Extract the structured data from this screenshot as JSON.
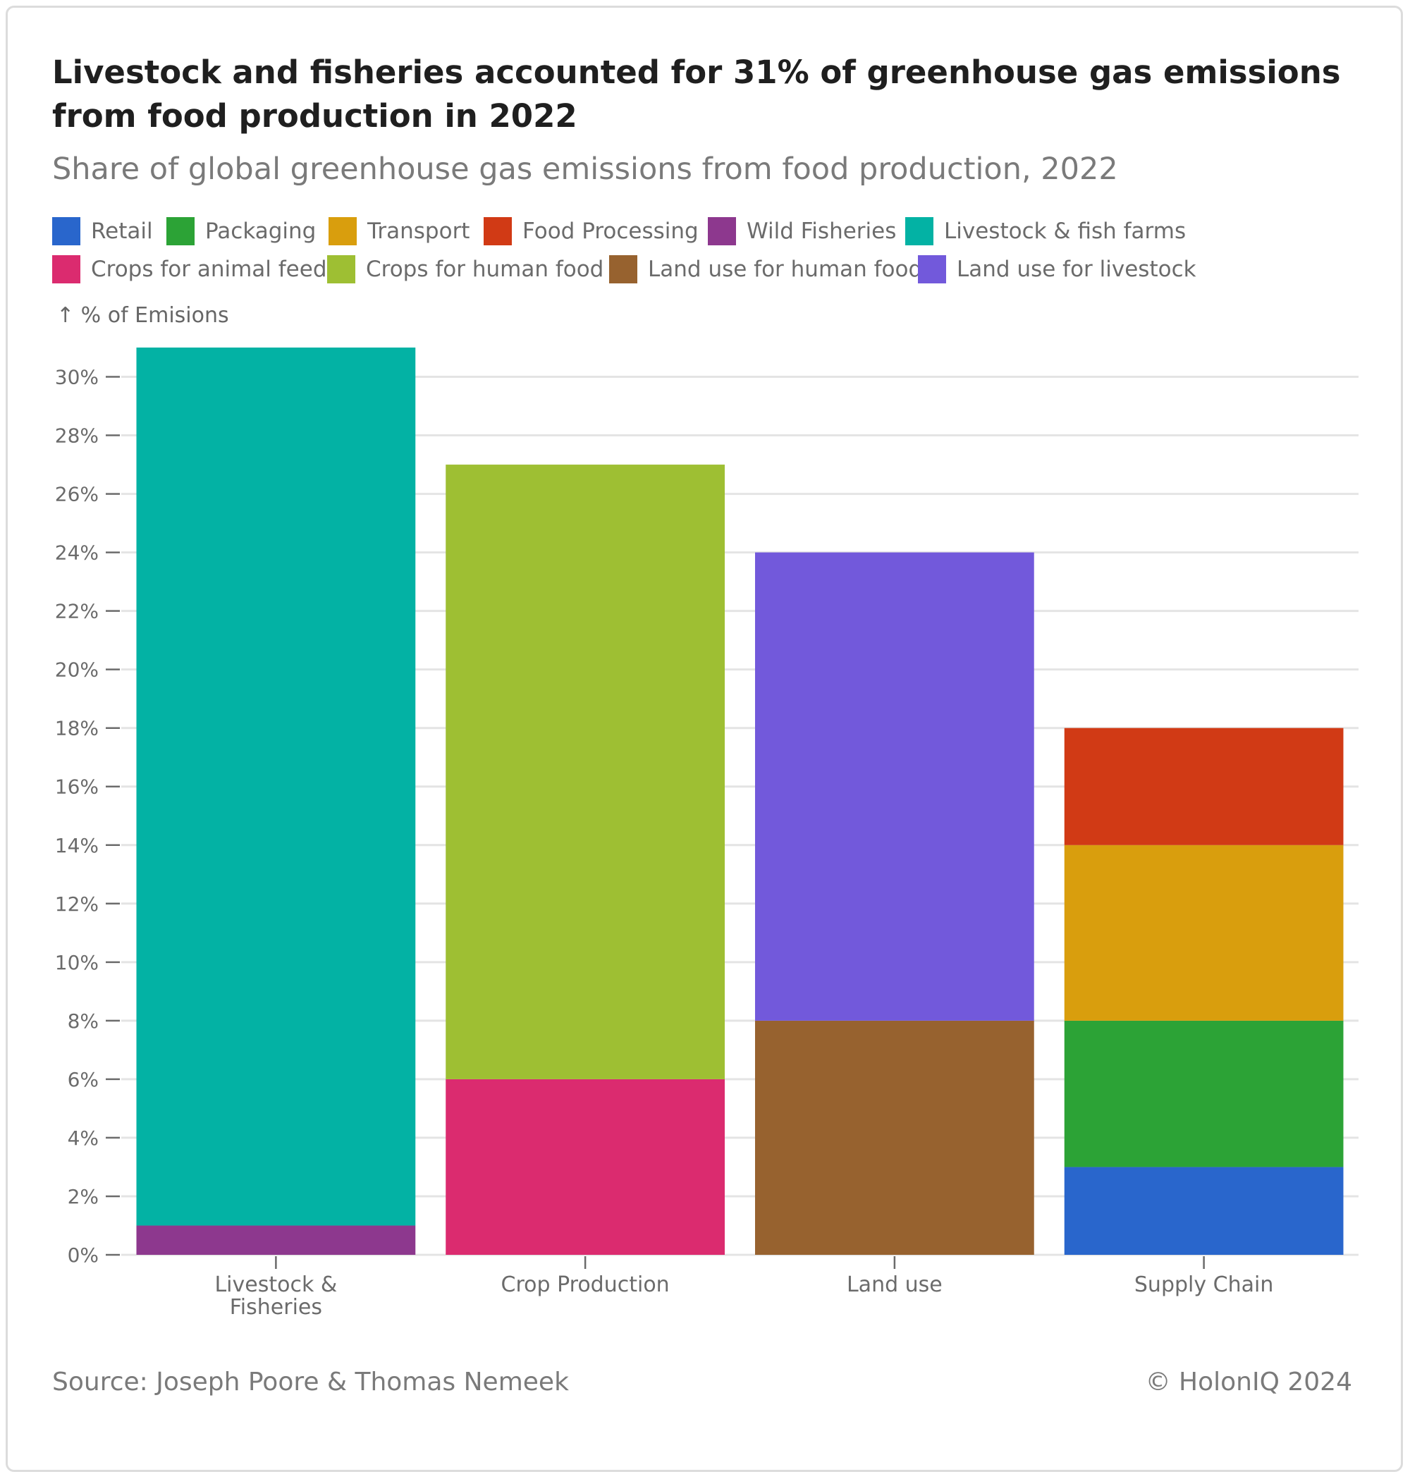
{
  "title": "Livestock and fisheries accounted for 31% of greenhouse gas emissions from food production in 2022",
  "subtitle": "Share of global greenhouse gas emissions from food production, 2022",
  "legend": [
    {
      "label": "Retail",
      "color": "#2966cc"
    },
    {
      "label": "Packaging",
      "color": "#2ca336"
    },
    {
      "label": "Transport",
      "color": "#d99e0d"
    },
    {
      "label": "Food Processing",
      "color": "#d13a15"
    },
    {
      "label": "Wild Fisheries",
      "color": "#8d388e"
    },
    {
      "label": "Livestock & fish farms",
      "color": "#03b2a4"
    },
    {
      "label": "Crops for animal feed",
      "color": "#db2b6f"
    },
    {
      "label": "Crops for human food",
      "color": "#9ebf33"
    },
    {
      "label": "Land use for human food",
      "color": "#97622f"
    },
    {
      "label": "Land use for livestock",
      "color": "#7259db"
    }
  ],
  "source": "Source: Joseph Poore & Thomas Nemeek",
  "copyright": "© HolonIQ 2024",
  "chart_data": {
    "type": "bar",
    "stacked": true,
    "ylabel": "↑ % of Emisions",
    "ylim": [
      0,
      31
    ],
    "yticks": [
      0,
      2,
      4,
      6,
      8,
      10,
      12,
      14,
      16,
      18,
      20,
      22,
      24,
      26,
      28,
      30
    ],
    "ytick_suffix": "%",
    "grid": true,
    "legend_position": "top",
    "categories": [
      [
        "Livestock &",
        "Fisheries"
      ],
      [
        "Crop Production"
      ],
      [
        "Land use"
      ],
      [
        "Supply Chain"
      ]
    ],
    "series": [
      {
        "name": "Retail",
        "color": "#2966cc",
        "values": [
          0,
          0,
          0,
          3
        ]
      },
      {
        "name": "Packaging",
        "color": "#2ca336",
        "values": [
          0,
          0,
          0,
          5
        ]
      },
      {
        "name": "Transport",
        "color": "#d99e0d",
        "values": [
          0,
          0,
          0,
          6
        ]
      },
      {
        "name": "Food Processing",
        "color": "#d13a15",
        "values": [
          0,
          0,
          0,
          4
        ]
      },
      {
        "name": "Wild Fisheries",
        "color": "#8d388e",
        "values": [
          1,
          0,
          0,
          0
        ]
      },
      {
        "name": "Livestock & fish farms",
        "color": "#03b2a4",
        "values": [
          30,
          0,
          0,
          0
        ]
      },
      {
        "name": "Crops for animal feed",
        "color": "#db2b6f",
        "values": [
          0,
          6,
          0,
          0
        ]
      },
      {
        "name": "Crops for human food",
        "color": "#9ebf33",
        "values": [
          0,
          21,
          0,
          0
        ]
      },
      {
        "name": "Land use for human food",
        "color": "#97622f",
        "values": [
          0,
          0,
          8,
          0
        ]
      },
      {
        "name": "Land use for livestock",
        "color": "#7259db",
        "values": [
          0,
          0,
          16,
          0
        ]
      }
    ]
  }
}
